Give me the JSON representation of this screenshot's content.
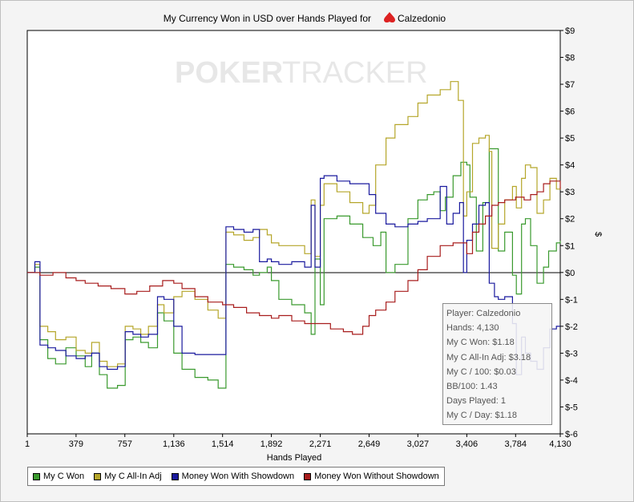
{
  "chart_data": {
    "type": "line",
    "title": "My Currency Won in USD over Hands Played for",
    "title_player": "Calzedonio",
    "watermark_left": "POKER",
    "watermark_right": "TRACKER",
    "xlabel": "Hands Played",
    "ylabel": "$",
    "xlim": [
      1,
      4130
    ],
    "ylim": [
      -6,
      9
    ],
    "x_ticks": [
      1,
      379,
      757,
      1136,
      1514,
      1892,
      2271,
      2649,
      3027,
      3406,
      3784,
      4130
    ],
    "x_tick_labels": [
      "1",
      "379",
      "757",
      "1,136",
      "1,514",
      "1,892",
      "2,271",
      "2,649",
      "3,027",
      "3,406",
      "3,784",
      "4,130"
    ],
    "y_ticks": [
      9,
      8,
      7,
      6,
      5,
      4,
      3,
      2,
      1,
      0,
      -1,
      -2,
      -3,
      -4,
      -5,
      -6
    ],
    "y_tick_labels": [
      "$9",
      "$8",
      "$7",
      "$6",
      "$5",
      "$4",
      "$3",
      "$2",
      "$1",
      "$0",
      "$-1",
      "$-2",
      "$-3",
      "$-4",
      "$-5",
      "$-6"
    ],
    "grid": false,
    "legend_position": "bottom-left",
    "series": [
      {
        "name": "My C Won",
        "color": "#3a9a2e",
        "points": [
          [
            1,
            0
          ],
          [
            60,
            0.2
          ],
          [
            100,
            -2.5
          ],
          [
            160,
            -3.2
          ],
          [
            220,
            -3.4
          ],
          [
            300,
            -2.8
          ],
          [
            380,
            -3.1
          ],
          [
            450,
            -3.5
          ],
          [
            500,
            -3.0
          ],
          [
            560,
            -3.8
          ],
          [
            620,
            -4.3
          ],
          [
            700,
            -4.2
          ],
          [
            760,
            -2.5
          ],
          [
            820,
            -2.4
          ],
          [
            880,
            -2.6
          ],
          [
            940,
            -2.8
          ],
          [
            1010,
            -1.5
          ],
          [
            1060,
            -1.8
          ],
          [
            1136,
            -3.0
          ],
          [
            1200,
            -3.6
          ],
          [
            1300,
            -3.9
          ],
          [
            1400,
            -4.0
          ],
          [
            1480,
            -4.3
          ],
          [
            1514,
            -4.3
          ],
          [
            1540,
            0.3
          ],
          [
            1600,
            0.2
          ],
          [
            1680,
            0.1
          ],
          [
            1750,
            -0.1
          ],
          [
            1800,
            0.0
          ],
          [
            1860,
            0.2
          ],
          [
            1892,
            -0.3
          ],
          [
            1950,
            -1.0
          ],
          [
            2050,
            -1.2
          ],
          [
            2150,
            -1.5
          ],
          [
            2200,
            -2.3
          ],
          [
            2230,
            0.5
          ],
          [
            2271,
            -1.2
          ],
          [
            2300,
            2.0
          ],
          [
            2400,
            2.1
          ],
          [
            2500,
            1.8
          ],
          [
            2600,
            1.3
          ],
          [
            2680,
            1.0
          ],
          [
            2740,
            1.5
          ],
          [
            2780,
            0.0
          ],
          [
            2850,
            0.3
          ],
          [
            2950,
            2.0
          ],
          [
            3027,
            2.7
          ],
          [
            3100,
            2.9
          ],
          [
            3150,
            3.0
          ],
          [
            3200,
            2.3
          ],
          [
            3240,
            2.8
          ],
          [
            3300,
            3.6
          ],
          [
            3360,
            4.1
          ],
          [
            3406,
            4.0
          ],
          [
            3430,
            2.8
          ],
          [
            3480,
            0.8
          ],
          [
            3530,
            2.6
          ],
          [
            3580,
            4.6
          ],
          [
            3620,
            4.6
          ],
          [
            3650,
            0.8
          ],
          [
            3700,
            1.5
          ],
          [
            3760,
            -0.1
          ],
          [
            3790,
            -0.8
          ],
          [
            3830,
            1.8
          ],
          [
            3860,
            2.0
          ],
          [
            3900,
            1.0
          ],
          [
            3950,
            -0.4
          ],
          [
            4000,
            0.2
          ],
          [
            4040,
            0.8
          ],
          [
            4100,
            1.1
          ],
          [
            4130,
            1.18
          ]
        ]
      },
      {
        "name": "My C All-In Adj",
        "color": "#b5a62a",
        "points": [
          [
            1,
            0
          ],
          [
            60,
            0.3
          ],
          [
            100,
            -2.0
          ],
          [
            160,
            -2.2
          ],
          [
            220,
            -2.5
          ],
          [
            300,
            -2.4
          ],
          [
            380,
            -2.9
          ],
          [
            450,
            -3.0
          ],
          [
            500,
            -2.6
          ],
          [
            560,
            -3.3
          ],
          [
            620,
            -3.5
          ],
          [
            700,
            -3.4
          ],
          [
            760,
            -2.0
          ],
          [
            820,
            -2.1
          ],
          [
            880,
            -2.3
          ],
          [
            940,
            -2.0
          ],
          [
            1010,
            -1.2
          ],
          [
            1060,
            -1.5
          ],
          [
            1136,
            -0.9
          ],
          [
            1200,
            -0.7
          ],
          [
            1300,
            -1.0
          ],
          [
            1400,
            -1.4
          ],
          [
            1480,
            -1.7
          ],
          [
            1514,
            -1.7
          ],
          [
            1540,
            1.5
          ],
          [
            1600,
            1.4
          ],
          [
            1680,
            1.2
          ],
          [
            1750,
            1.3
          ],
          [
            1800,
            1.6
          ],
          [
            1860,
            1.4
          ],
          [
            1892,
            1.1
          ],
          [
            1950,
            1.0
          ],
          [
            2050,
            1.0
          ],
          [
            2150,
            0.7
          ],
          [
            2200,
            2.7
          ],
          [
            2230,
            0.6
          ],
          [
            2271,
            2.5
          ],
          [
            2300,
            3.3
          ],
          [
            2400,
            3.0
          ],
          [
            2500,
            2.6
          ],
          [
            2600,
            2.2
          ],
          [
            2649,
            2.5
          ],
          [
            2700,
            4.0
          ],
          [
            2780,
            5.0
          ],
          [
            2850,
            5.5
          ],
          [
            2950,
            5.8
          ],
          [
            3027,
            6.3
          ],
          [
            3100,
            6.6
          ],
          [
            3200,
            6.8
          ],
          [
            3280,
            7.1
          ],
          [
            3340,
            6.4
          ],
          [
            3380,
            2.1
          ],
          [
            3406,
            3.0
          ],
          [
            3450,
            4.8
          ],
          [
            3500,
            5.0
          ],
          [
            3550,
            5.1
          ],
          [
            3580,
            4.5
          ],
          [
            3600,
            0.9
          ],
          [
            3650,
            1.8
          ],
          [
            3700,
            2.7
          ],
          [
            3760,
            3.2
          ],
          [
            3790,
            2.4
          ],
          [
            3830,
            3.5
          ],
          [
            3860,
            4.0
          ],
          [
            3900,
            3.9
          ],
          [
            3950,
            2.2
          ],
          [
            4000,
            2.7
          ],
          [
            4050,
            3.5
          ],
          [
            4100,
            3.1
          ],
          [
            4130,
            3.18
          ]
        ]
      },
      {
        "name": "Money Won With Showdown",
        "color": "#1a1a9e",
        "points": [
          [
            1,
            0
          ],
          [
            60,
            0.4
          ],
          [
            100,
            -2.7
          ],
          [
            160,
            -2.8
          ],
          [
            220,
            -2.9
          ],
          [
            300,
            -3.1
          ],
          [
            380,
            -3.2
          ],
          [
            450,
            -3.1
          ],
          [
            500,
            -3.0
          ],
          [
            560,
            -3.5
          ],
          [
            620,
            -3.6
          ],
          [
            700,
            -3.5
          ],
          [
            760,
            -2.2
          ],
          [
            820,
            -2.3
          ],
          [
            880,
            -2.4
          ],
          [
            940,
            -2.3
          ],
          [
            1010,
            -0.9
          ],
          [
            1060,
            -1.0
          ],
          [
            1136,
            -2.0
          ],
          [
            1200,
            -3.0
          ],
          [
            1300,
            -3.05
          ],
          [
            1400,
            -3.05
          ],
          [
            1514,
            -3.05
          ],
          [
            1540,
            1.7
          ],
          [
            1600,
            1.6
          ],
          [
            1680,
            1.5
          ],
          [
            1750,
            1.6
          ],
          [
            1800,
            0.4
          ],
          [
            1860,
            0.5
          ],
          [
            1892,
            0.4
          ],
          [
            1950,
            0.3
          ],
          [
            2050,
            0.4
          ],
          [
            2150,
            0.2
          ],
          [
            2200,
            2.5
          ],
          [
            2230,
            0.2
          ],
          [
            2271,
            3.5
          ],
          [
            2300,
            3.6
          ],
          [
            2400,
            3.4
          ],
          [
            2500,
            3.3
          ],
          [
            2600,
            3.3
          ],
          [
            2649,
            2.9
          ],
          [
            2700,
            2.2
          ],
          [
            2780,
            1.8
          ],
          [
            2850,
            1.7
          ],
          [
            2950,
            1.8
          ],
          [
            3027,
            1.9
          ],
          [
            3100,
            2.0
          ],
          [
            3200,
            3.2
          ],
          [
            3250,
            1.8
          ],
          [
            3300,
            2.2
          ],
          [
            3350,
            2.6
          ],
          [
            3380,
            0.0
          ],
          [
            3406,
            1.2
          ],
          [
            3450,
            1.8
          ],
          [
            3500,
            2.5
          ],
          [
            3550,
            2.6
          ],
          [
            3580,
            -0.4
          ],
          [
            3620,
            -0.9
          ],
          [
            3650,
            -1.0
          ],
          [
            3700,
            -0.9
          ],
          [
            3760,
            -1.9
          ],
          [
            3790,
            -3.8
          ],
          [
            3830,
            -2.4
          ],
          [
            3860,
            -3.0
          ],
          [
            3900,
            -3.3
          ],
          [
            3950,
            -3.6
          ],
          [
            4000,
            -2.8
          ],
          [
            4050,
            -2.1
          ],
          [
            4100,
            -2.0
          ],
          [
            4130,
            -2.0
          ]
        ]
      },
      {
        "name": "Money Won Without Showdown",
        "color": "#a81d1d",
        "points": [
          [
            1,
            0
          ],
          [
            100,
            -0.1
          ],
          [
            200,
            0.0
          ],
          [
            300,
            -0.2
          ],
          [
            379,
            -0.3
          ],
          [
            450,
            -0.4
          ],
          [
            550,
            -0.5
          ],
          [
            650,
            -0.6
          ],
          [
            757,
            -0.8
          ],
          [
            850,
            -0.7
          ],
          [
            950,
            -0.5
          ],
          [
            1050,
            -0.3
          ],
          [
            1136,
            -0.4
          ],
          [
            1200,
            -0.6
          ],
          [
            1300,
            -0.9
          ],
          [
            1400,
            -1.1
          ],
          [
            1514,
            -1.2
          ],
          [
            1600,
            -1.3
          ],
          [
            1700,
            -1.5
          ],
          [
            1800,
            -1.6
          ],
          [
            1892,
            -1.7
          ],
          [
            1950,
            -1.6
          ],
          [
            2050,
            -1.8
          ],
          [
            2150,
            -1.9
          ],
          [
            2271,
            -1.9
          ],
          [
            2350,
            -2.1
          ],
          [
            2450,
            -2.2
          ],
          [
            2520,
            -2.3
          ],
          [
            2600,
            -2.0
          ],
          [
            2649,
            -1.6
          ],
          [
            2700,
            -1.4
          ],
          [
            2780,
            -1.1
          ],
          [
            2850,
            -0.7
          ],
          [
            2950,
            -0.3
          ],
          [
            3027,
            0.1
          ],
          [
            3100,
            0.6
          ],
          [
            3200,
            1.0
          ],
          [
            3300,
            1.1
          ],
          [
            3406,
            0.7
          ],
          [
            3450,
            1.5
          ],
          [
            3500,
            1.8
          ],
          [
            3550,
            2.1
          ],
          [
            3600,
            2.5
          ],
          [
            3650,
            2.6
          ],
          [
            3700,
            2.7
          ],
          [
            3784,
            2.8
          ],
          [
            3850,
            2.7
          ],
          [
            3900,
            2.9
          ],
          [
            3950,
            3.0
          ],
          [
            4000,
            3.3
          ],
          [
            4050,
            3.4
          ],
          [
            4130,
            3.1
          ]
        ]
      }
    ]
  },
  "tooltip": {
    "lines": [
      "Player: Calzedonio",
      "Hands: 4,130",
      "My C Won: $1.18",
      "My C All-In Adj: $3.18",
      "My C / 100: $0.03",
      "BB/100: 1.43",
      "Days Played: 1",
      "My C / Day: $1.18"
    ]
  }
}
